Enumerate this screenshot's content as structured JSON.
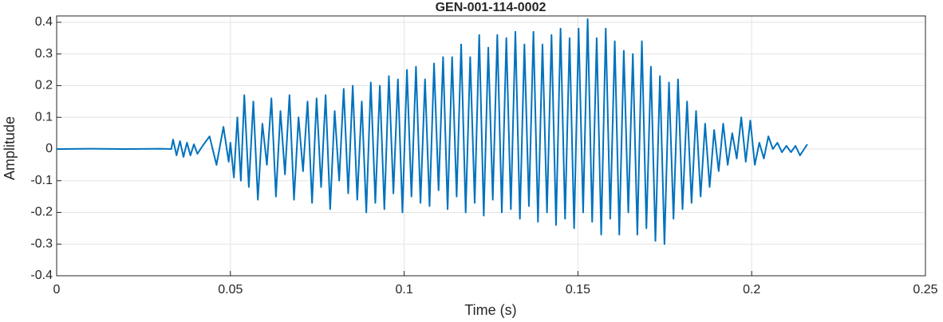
{
  "chart_data": {
    "type": "line",
    "title": "GEN-001-114-0002",
    "x_label": "Time (s)",
    "y_label": "Amplitude",
    "color": "#0072bd",
    "grid": true,
    "xlim": [
      0,
      0.25
    ],
    "xticks": [
      0,
      0.05,
      0.1,
      0.15,
      0.2,
      0.25
    ],
    "ylim": [
      -0.4,
      0.42
    ],
    "yticks": [
      -0.4,
      -0.3,
      -0.2,
      -0.1,
      0,
      0.1,
      0.2,
      0.3,
      0.4
    ],
    "x": [
      0,
      0.01,
      0.02,
      0.03,
      0.033,
      0.0335,
      0.0345,
      0.0355,
      0.0365,
      0.0375,
      0.0385,
      0.0395,
      0.0405,
      0.042,
      0.044,
      0.046,
      0.048,
      0.0495,
      0.05,
      0.051,
      0.052,
      0.053,
      0.054,
      0.0553,
      0.0566,
      0.0579,
      0.0592,
      0.0605,
      0.0618,
      0.0631,
      0.0644,
      0.0657,
      0.067,
      0.0683,
      0.0696,
      0.0709,
      0.0722,
      0.0735,
      0.0748,
      0.0761,
      0.0774,
      0.0787,
      0.08,
      0.0813,
      0.0826,
      0.0839,
      0.0852,
      0.0865,
      0.0878,
      0.0891,
      0.0904,
      0.0917,
      0.093,
      0.0943,
      0.0956,
      0.0969,
      0.0982,
      0.0995,
      0.1008,
      0.1021,
      0.1034,
      0.1047,
      0.106,
      0.1073,
      0.1086,
      0.1099,
      0.1112,
      0.1125,
      0.1138,
      0.1151,
      0.1164,
      0.1177,
      0.119,
      0.1203,
      0.1216,
      0.1229,
      0.1242,
      0.1255,
      0.1268,
      0.1281,
      0.1294,
      0.1307,
      0.132,
      0.1333,
      0.1346,
      0.1359,
      0.1372,
      0.1385,
      0.1398,
      0.1411,
      0.1424,
      0.1437,
      0.145,
      0.1463,
      0.1476,
      0.1489,
      0.1502,
      0.1515,
      0.1528,
      0.1541,
      0.1554,
      0.1567,
      0.158,
      0.1593,
      0.1606,
      0.1619,
      0.1632,
      0.1645,
      0.1658,
      0.1671,
      0.1684,
      0.1697,
      0.171,
      0.1723,
      0.1736,
      0.1749,
      0.1762,
      0.1775,
      0.1788,
      0.1801,
      0.1814,
      0.1827,
      0.184,
      0.1853,
      0.1866,
      0.1879,
      0.1892,
      0.1905,
      0.1918,
      0.1931,
      0.1944,
      0.1957,
      0.197,
      0.1983,
      0.1996,
      0.2009,
      0.2022,
      0.2035,
      0.2048,
      0.2061,
      0.2074,
      0.2087,
      0.21,
      0.2113,
      0.2126,
      0.2139,
      0.216
    ],
    "values": [
      0,
      0.001,
      0,
      0.001,
      0,
      0.03,
      -0.02,
      0.025,
      -0.025,
      0.02,
      -0.02,
      0.015,
      -0.015,
      0.01,
      0.04,
      -0.05,
      0.07,
      -0.04,
      0.02,
      -0.09,
      0.1,
      -0.1,
      0.17,
      -0.12,
      0.15,
      -0.16,
      0.08,
      -0.05,
      0.16,
      -0.15,
      0.12,
      -0.08,
      0.17,
      -0.16,
      0.1,
      -0.07,
      0.15,
      -0.17,
      0.16,
      -0.12,
      0.17,
      -0.19,
      0.12,
      -0.1,
      0.19,
      -0.14,
      0.2,
      -0.16,
      0.15,
      -0.2,
      0.21,
      -0.17,
      0.2,
      -0.19,
      0.23,
      -0.14,
      0.22,
      -0.2,
      0.25,
      -0.15,
      0.26,
      -0.17,
      0.22,
      -0.18,
      0.27,
      -0.13,
      0.29,
      -0.19,
      0.29,
      -0.15,
      0.33,
      -0.2,
      0.29,
      -0.17,
      0.36,
      -0.21,
      0.32,
      -0.16,
      0.36,
      -0.2,
      0.35,
      -0.19,
      0.37,
      -0.22,
      0.33,
      -0.18,
      0.37,
      -0.23,
      0.33,
      -0.2,
      0.36,
      -0.24,
      0.38,
      -0.22,
      0.35,
      -0.25,
      0.38,
      -0.2,
      0.41,
      -0.23,
      0.35,
      -0.27,
      0.38,
      -0.22,
      0.34,
      -0.27,
      0.31,
      -0.2,
      0.3,
      -0.27,
      0.34,
      -0.25,
      0.26,
      -0.29,
      0.23,
      -0.3,
      0.21,
      -0.22,
      0.22,
      -0.19,
      0.15,
      -0.17,
      0.12,
      -0.15,
      0.08,
      -0.12,
      0.06,
      -0.07,
      0.08,
      -0.05,
      0.05,
      -0.03,
      0.1,
      -0.04,
      0.09,
      -0.05,
      0.02,
      -0.03,
      0.04,
      0,
      0.02,
      -0.01,
      0.01,
      -0.01,
      0.01,
      -0.02,
      0.015
    ]
  }
}
